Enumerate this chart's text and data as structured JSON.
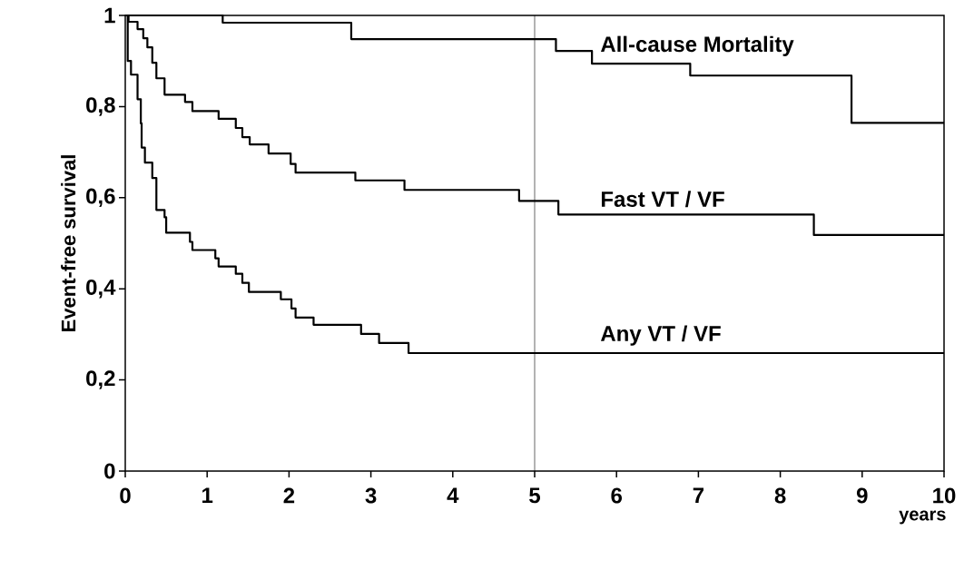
{
  "chart_data": {
    "type": "step",
    "xlabel": "years",
    "ylabel": "Event-free survival",
    "xlim": [
      0,
      10
    ],
    "ylim": [
      0,
      1
    ],
    "xticks": [
      0,
      1,
      2,
      3,
      4,
      5,
      6,
      7,
      8,
      9,
      10
    ],
    "yticks": [
      0,
      {
        "value": 0.2,
        "label": "0,2"
      },
      {
        "value": 0.4,
        "label": "0,4"
      },
      {
        "value": 0.6,
        "label": "0,6"
      },
      {
        "value": 0.8,
        "label": "0,8"
      },
      1
    ],
    "grid": false,
    "ref_lines": [
      {
        "axis": "x",
        "value": 5,
        "color": "#000000"
      }
    ],
    "series": [
      {
        "name": "All-cause Mortality",
        "color": "#000000",
        "x": [
          0,
          1.19,
          2.76,
          5.26,
          5.7,
          6.9,
          8.87,
          10
        ],
        "values": [
          1,
          0.984,
          0.948,
          0.922,
          0.894,
          0.868,
          0.764,
          0.764
        ]
      },
      {
        "name": "Fast VT / VF",
        "color": "#000000",
        "x": [
          0,
          0.04,
          0.15,
          0.22,
          0.27,
          0.33,
          0.38,
          0.48,
          0.73,
          0.82,
          1.14,
          1.35,
          1.43,
          1.52,
          1.75,
          2.02,
          2.08,
          2.81,
          3.41,
          4.81,
          5.29,
          8.41,
          10
        ],
        "values": [
          1,
          0.986,
          0.97,
          0.95,
          0.93,
          0.896,
          0.862,
          0.826,
          0.81,
          0.79,
          0.773,
          0.753,
          0.733,
          0.717,
          0.697,
          0.674,
          0.655,
          0.638,
          0.617,
          0.593,
          0.563,
          0.518,
          0.518
        ]
      },
      {
        "name": "Any VT / VF",
        "color": "#000000",
        "x": [
          0,
          0.03,
          0.07,
          0.15,
          0.19,
          0.2,
          0.24,
          0.33,
          0.38,
          0.48,
          0.5,
          0.79,
          0.82,
          1.1,
          1.14,
          1.35,
          1.43,
          1.51,
          1.9,
          2.03,
          2.08,
          2.3,
          2.88,
          3.1,
          3.46,
          10
        ],
        "values": [
          1,
          0.9,
          0.87,
          0.816,
          0.763,
          0.71,
          0.677,
          0.643,
          0.573,
          0.557,
          0.523,
          0.503,
          0.485,
          0.467,
          0.449,
          0.433,
          0.413,
          0.393,
          0.377,
          0.357,
          0.337,
          0.321,
          0.301,
          0.281,
          0.259,
          0.259
        ]
      }
    ]
  }
}
